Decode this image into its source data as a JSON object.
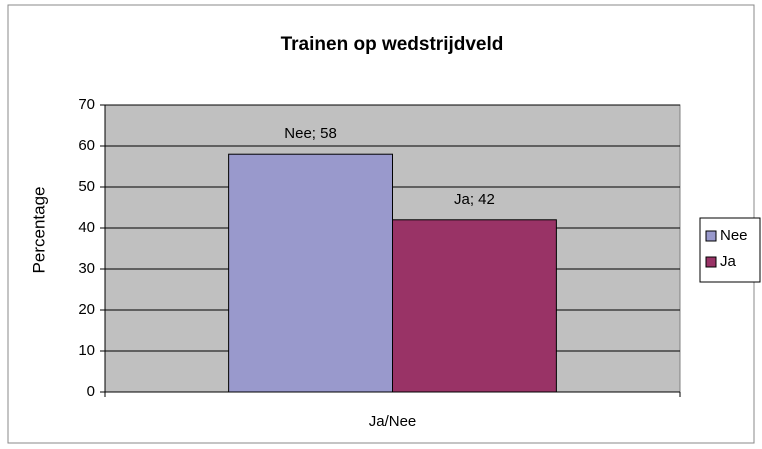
{
  "chart_data": {
    "type": "bar",
    "title": "Trainen op wedstrijdveld",
    "categories": [
      "Ja/Nee"
    ],
    "series": [
      {
        "name": "Nee",
        "color": "#9999cc",
        "values": [
          58
        ],
        "value_labels": [
          "Nee; 58"
        ]
      },
      {
        "name": "Ja",
        "color": "#993366",
        "values": [
          42
        ],
        "value_labels": [
          "Ja; 42"
        ]
      }
    ],
    "ylabel": "Percentage",
    "xlabel": "Ja/Nee",
    "ylim": [
      0,
      70
    ],
    "yticks": [
      0,
      10,
      20,
      30,
      40,
      50,
      60,
      70
    ],
    "grid": true,
    "legend": "right"
  }
}
